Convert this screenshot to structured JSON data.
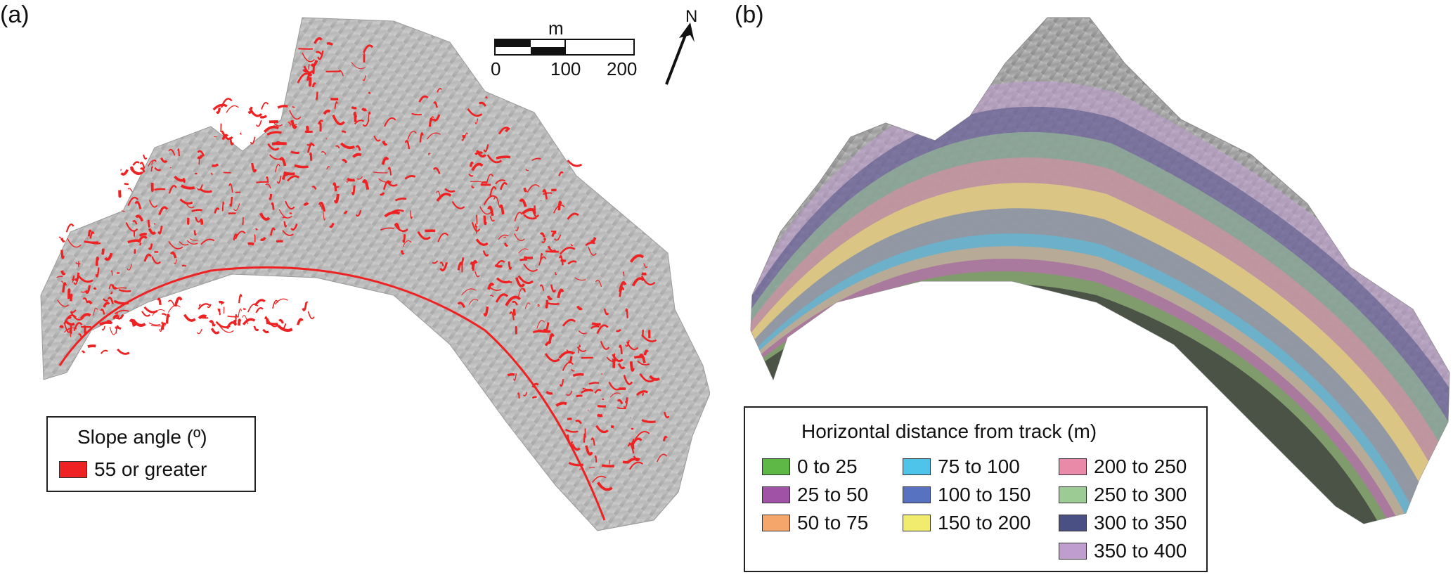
{
  "panels": {
    "a": {
      "label": "(a)",
      "legend": {
        "title": "Slope angle (º)",
        "items": [
          {
            "label": "55 or greater",
            "color": "#ee2222"
          }
        ]
      },
      "scale_bar": {
        "unit": "m",
        "ticks": [
          "0",
          "100",
          "200"
        ]
      },
      "north": "N"
    },
    "b": {
      "label": "(b)",
      "legend": {
        "title": "Horizontal distance from track (m)",
        "items": [
          {
            "label": "0 to 25",
            "color": "#5db845"
          },
          {
            "label": "25 to 50",
            "color": "#a052a6"
          },
          {
            "label": "50 to 75",
            "color": "#f5a66b"
          },
          {
            "label": "75 to 100",
            "color": "#4fc4ea"
          },
          {
            "label": "100 to 150",
            "color": "#5672c0"
          },
          {
            "label": "150 to 200",
            "color": "#f1ec6e"
          },
          {
            "label": "200 to 250",
            "color": "#e98aa8"
          },
          {
            "label": "250 to 300",
            "color": "#9ccc94"
          },
          {
            "label": "300 to 350",
            "color": "#4a4f84"
          },
          {
            "label": "350 to 400",
            "color": "#bf9dcf"
          }
        ]
      }
    }
  },
  "colors": {
    "hillshade_light": "#d8d8d8",
    "hillshade_dark": "#8a8a8a",
    "slope_red": "#ee2222"
  }
}
